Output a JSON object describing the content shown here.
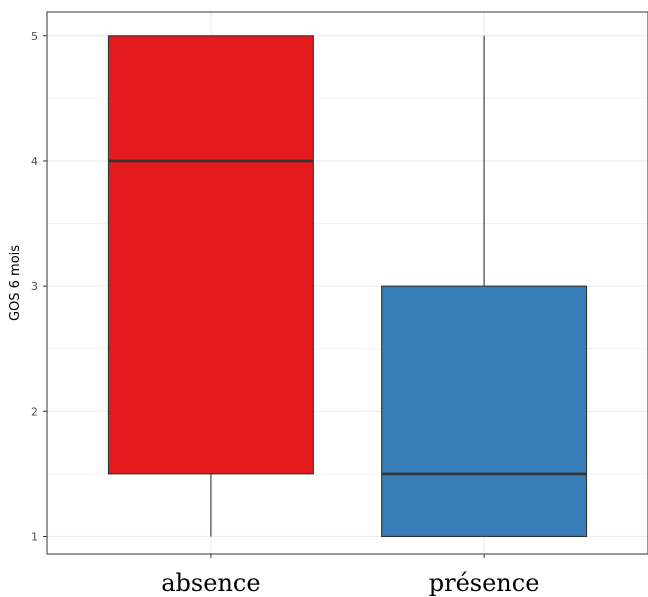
{
  "chart_data": {
    "type": "boxplot",
    "title": "",
    "xlabel": "",
    "ylabel": "GOS 6 mois",
    "categories": [
      "absence",
      "présence"
    ],
    "ylim": [
      0.86,
      5.19
    ],
    "yticks": [
      "1",
      "2",
      "3",
      "4",
      "5"
    ],
    "grid": true,
    "legend": "none",
    "boxes": [
      {
        "category": "absence",
        "min": 1,
        "q1": 1.5,
        "median": 4,
        "q3": 5,
        "max": 5,
        "fill": "#E41A1C"
      },
      {
        "category": "présence",
        "min": 1,
        "q1": 1,
        "median": 1.5,
        "q3": 3,
        "max": 5,
        "fill": "#377EB8"
      }
    ]
  }
}
